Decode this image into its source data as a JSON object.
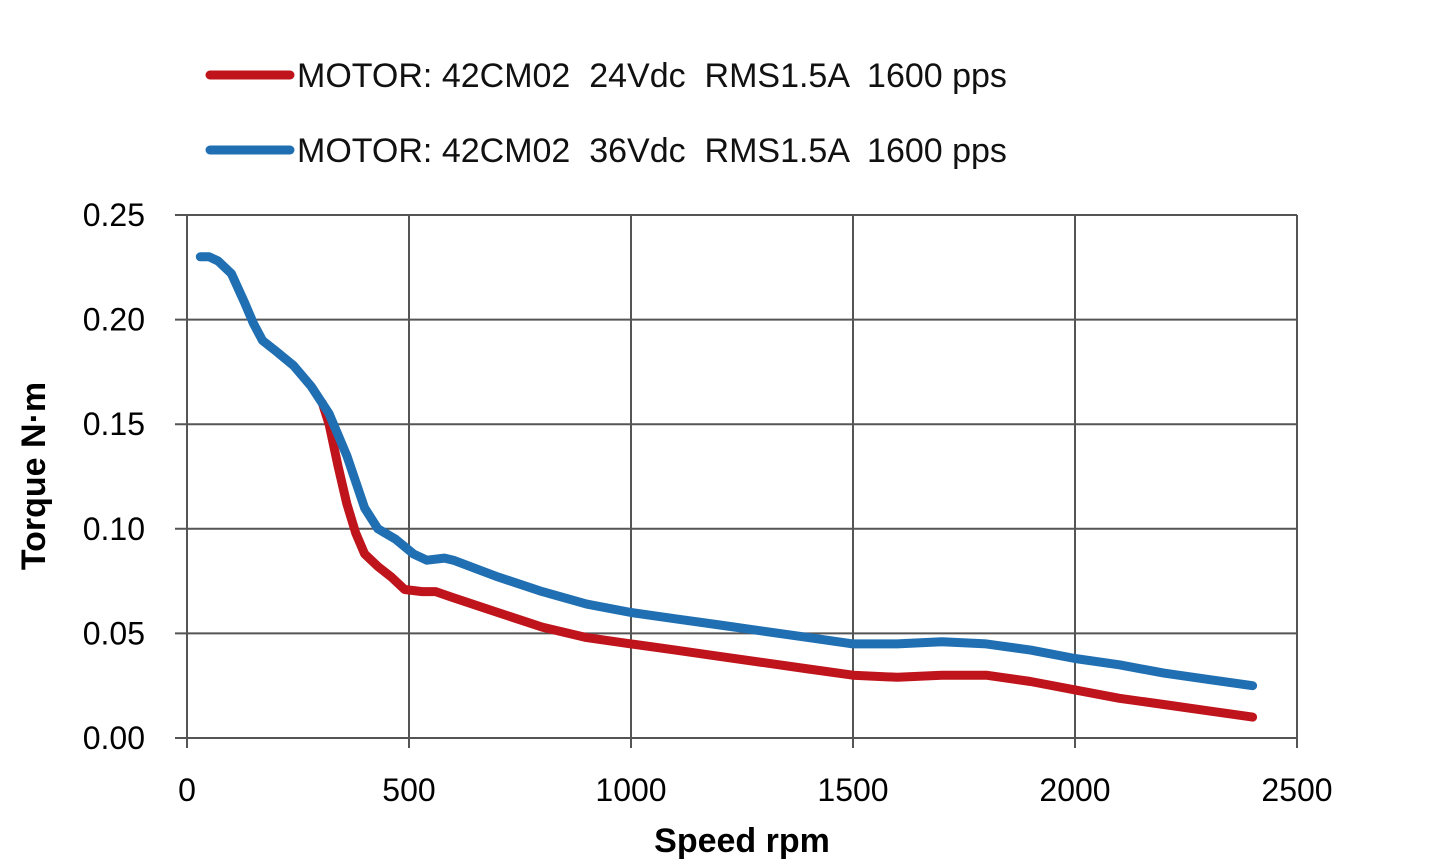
{
  "chart_data": {
    "type": "line",
    "title": "",
    "xlabel": "Speed rpm",
    "ylabel": "Torque N·m",
    "xlim": [
      0,
      2500
    ],
    "ylim": [
      0,
      0.25
    ],
    "x_ticks": [
      0,
      500,
      1000,
      1500,
      2000,
      2500
    ],
    "y_ticks": [
      0.0,
      0.05,
      0.1,
      0.15,
      0.2,
      0.25
    ],
    "x_tick_labels": [
      "0",
      "500",
      "1000",
      "1500",
      "2000",
      "2500"
    ],
    "y_tick_labels": [
      "0.00",
      "0.05",
      "0.10",
      "0.15",
      "0.20",
      "0.25"
    ],
    "grid": true,
    "legend_position": "top-left",
    "series": [
      {
        "name": "MOTOR: 42CM02  24Vdc  RMS1.5A  1600 pps",
        "color": "#c0141c",
        "x": [
          305,
          320,
          340,
          360,
          380,
          400,
          430,
          460,
          490,
          530,
          560,
          600,
          700,
          800,
          900,
          1000,
          1100,
          1200,
          1300,
          1400,
          1500,
          1600,
          1700,
          1800,
          1900,
          2000,
          2100,
          2200,
          2300,
          2400
        ],
        "y": [
          0.16,
          0.15,
          0.13,
          0.112,
          0.098,
          0.088,
          0.082,
          0.077,
          0.071,
          0.07,
          0.07,
          0.067,
          0.06,
          0.053,
          0.048,
          0.045,
          0.042,
          0.039,
          0.036,
          0.033,
          0.03,
          0.029,
          0.03,
          0.03,
          0.027,
          0.023,
          0.019,
          0.016,
          0.013,
          0.01
        ]
      },
      {
        "name": "MOTOR: 42CM02  36Vdc  RMS1.5A  1600 pps",
        "color": "#1f6fb2",
        "x": [
          30,
          50,
          70,
          100,
          130,
          150,
          170,
          200,
          240,
          280,
          320,
          360,
          400,
          430,
          470,
          510,
          540,
          580,
          600,
          700,
          800,
          900,
          1000,
          1100,
          1200,
          1300,
          1400,
          1500,
          1600,
          1700,
          1800,
          1900,
          2000,
          2100,
          2200,
          2300,
          2400
        ],
        "y": [
          0.23,
          0.23,
          0.228,
          0.222,
          0.208,
          0.198,
          0.19,
          0.185,
          0.178,
          0.168,
          0.155,
          0.135,
          0.11,
          0.1,
          0.095,
          0.088,
          0.085,
          0.086,
          0.085,
          0.077,
          0.07,
          0.064,
          0.06,
          0.057,
          0.054,
          0.051,
          0.048,
          0.045,
          0.045,
          0.046,
          0.045,
          0.042,
          0.038,
          0.035,
          0.031,
          0.028,
          0.025
        ]
      }
    ]
  }
}
